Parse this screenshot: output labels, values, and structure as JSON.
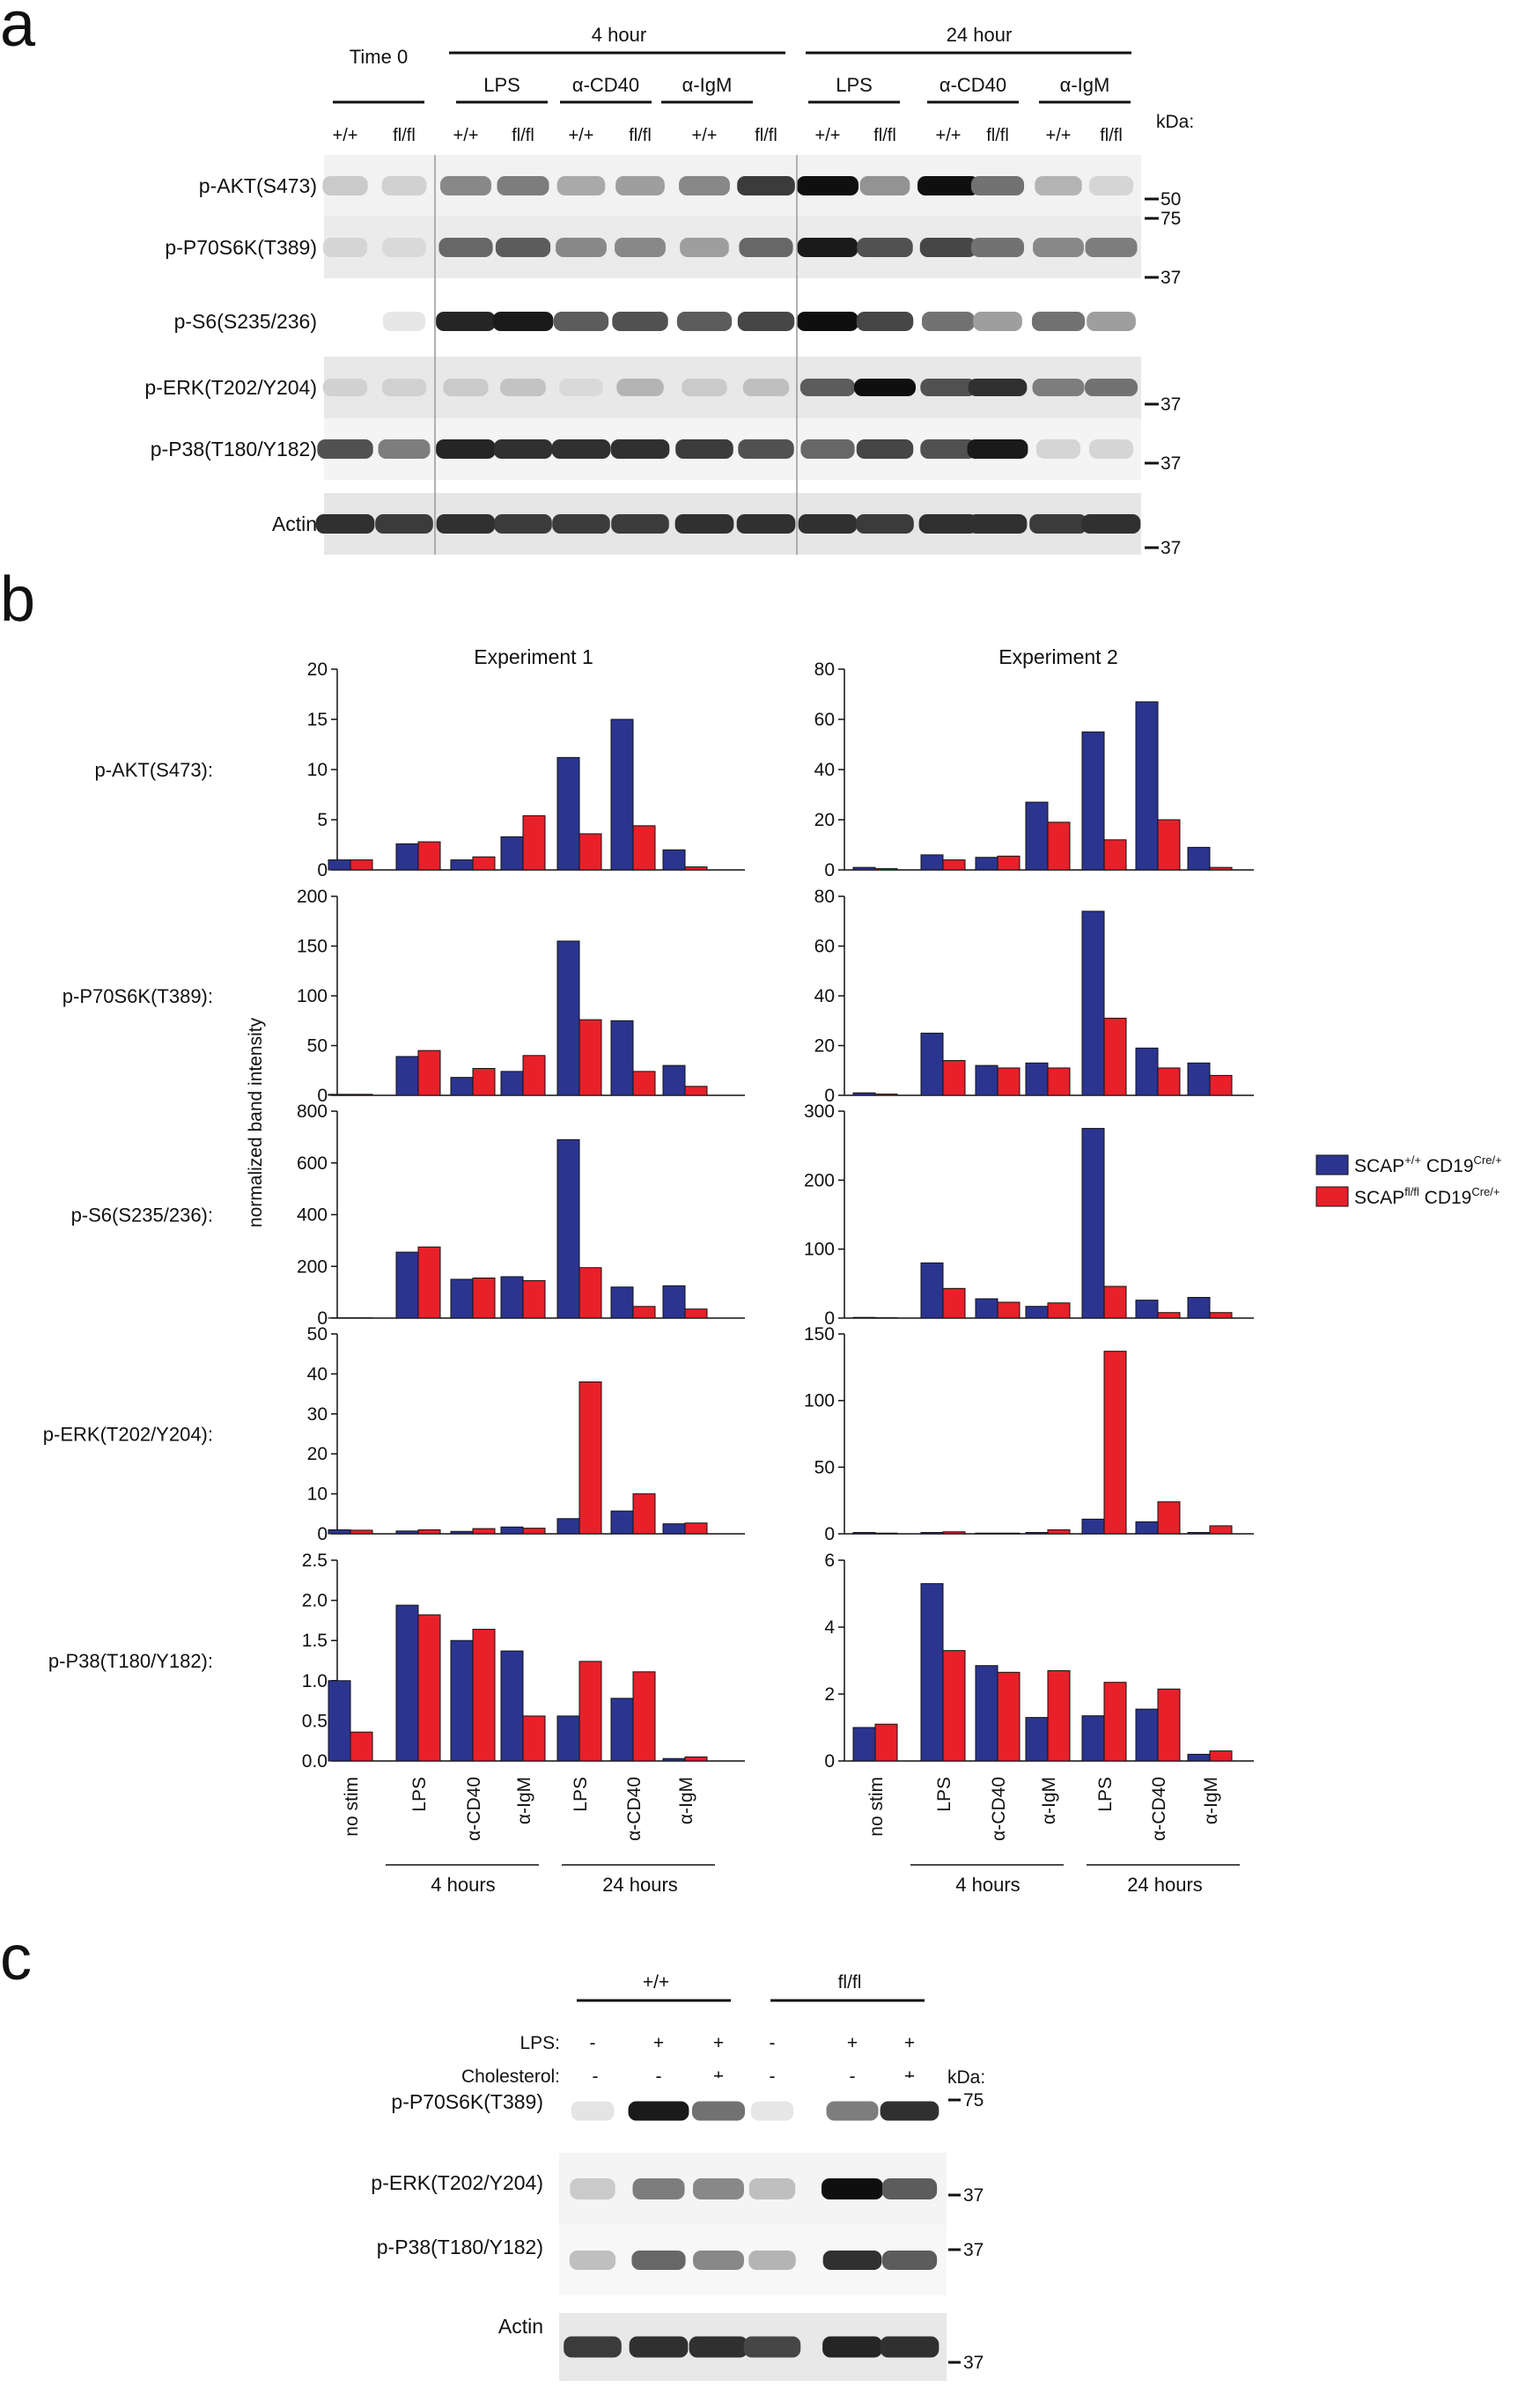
{
  "panel_a": {
    "letter": "a",
    "time0": "Time 0",
    "group_4h": "4 hour",
    "group_24h": "24 hour",
    "treatments": [
      "LPS",
      "α-CD40",
      "α-IgM",
      "LPS",
      "α-CD40",
      "α-IgM"
    ],
    "genotypes": [
      "+/+",
      "fl/fl",
      "+/+",
      "fl/fl",
      "+/+",
      "fl/fl",
      "+/+",
      "fl/fl",
      "+/+",
      "fl/fl",
      "+/+",
      "fl/fl",
      "+/+",
      "fl/fl"
    ],
    "kda_label": "kDa:",
    "blots": [
      {
        "label": "p-AKT(S473)",
        "markers": [
          "50",
          "75"
        ]
      },
      {
        "label": "p-P70S6K(T389)",
        "markers": [
          "37"
        ]
      },
      {
        "label": "p-S6(S235/236)",
        "markers": []
      },
      {
        "label": "p-ERK(T202/Y204)",
        "markers": [
          "37"
        ]
      },
      {
        "label": "p-P38(T180/Y182)",
        "markers": [
          "37"
        ]
      },
      {
        "label": "Actin",
        "markers": [
          "37"
        ]
      }
    ],
    "band_intensities": [
      [
        0.15,
        0.12,
        0.45,
        0.5,
        0.3,
        0.35,
        0.45,
        0.8,
        1.0,
        0.4,
        1.0,
        0.55,
        0.25,
        0.1
      ],
      [
        0.1,
        0.08,
        0.6,
        0.65,
        0.45,
        0.45,
        0.35,
        0.6,
        0.95,
        0.7,
        0.75,
        0.55,
        0.45,
        0.5
      ],
      [
        0.0,
        0.02,
        0.9,
        0.95,
        0.65,
        0.7,
        0.65,
        0.75,
        1.0,
        0.75,
        0.55,
        0.35,
        0.55,
        0.35
      ],
      [
        0.12,
        0.12,
        0.15,
        0.18,
        0.08,
        0.25,
        0.15,
        0.2,
        0.65,
        1.0,
        0.7,
        0.85,
        0.5,
        0.55
      ],
      [
        0.7,
        0.5,
        0.9,
        0.85,
        0.85,
        0.85,
        0.8,
        0.7,
        0.6,
        0.75,
        0.7,
        0.95,
        0.1,
        0.1
      ],
      [
        0.85,
        0.8,
        0.85,
        0.8,
        0.8,
        0.8,
        0.85,
        0.85,
        0.85,
        0.8,
        0.85,
        0.85,
        0.8,
        0.85
      ]
    ]
  },
  "panel_b": {
    "letter": "b",
    "ylabel": "normalized band intensity",
    "row_labels": [
      "p-AKT(S473):",
      "p-P70S6K(T389):",
      "p-S6(S235/236):",
      "p-ERK(T202/Y204):",
      "p-P38(T180/Y182):"
    ],
    "x_categories": [
      "no stim",
      "LPS",
      "α-CD40",
      "α-IgM",
      "LPS",
      "α-CD40",
      "α-IgM"
    ],
    "x_groups": [
      "4 hours",
      "24 hours"
    ],
    "legend": {
      "wt_main": "SCAP",
      "wt_sup": "+/+",
      "wt_rest": " CD19",
      "wt_sup2": "Cre/+",
      "ko_main": "SCAP",
      "ko_sup": "fl/fl",
      "ko_rest": " CD19",
      "ko_sup2": "Cre/+"
    },
    "colors": {
      "wt": "#2b3590",
      "ko": "#e8202a"
    }
  },
  "chart_data": [
    {
      "type": "bar",
      "title": "Experiment 1",
      "row": "p-AKT(S473):",
      "categories": [
        "no stim",
        "LPS",
        "α-CD40",
        "α-IgM",
        "LPS",
        "α-CD40",
        "α-IgM"
      ],
      "series": [
        {
          "name": "SCAP+/+ CD19Cre/+",
          "values": [
            1.0,
            2.6,
            1.0,
            3.3,
            11.2,
            15.0,
            2.0
          ]
        },
        {
          "name": "SCAPfl/fl CD19Cre/+",
          "values": [
            1.0,
            2.8,
            1.3,
            5.4,
            3.6,
            4.4,
            0.3
          ]
        }
      ],
      "ylim": [
        0,
        20
      ],
      "yticks": [
        0,
        5,
        10,
        15,
        20
      ]
    },
    {
      "type": "bar",
      "title": "Experiment 2",
      "row": "p-AKT(S473):",
      "categories": [
        "no stim",
        "LPS",
        "α-CD40",
        "α-IgM",
        "LPS",
        "α-CD40",
        "α-IgM"
      ],
      "series": [
        {
          "name": "SCAP+/+ CD19Cre/+",
          "values": [
            1,
            6,
            5,
            27,
            55,
            67,
            9
          ]
        },
        {
          "name": "SCAPfl/fl CD19Cre/+",
          "values": [
            0.5,
            4,
            5.5,
            19,
            12,
            20,
            1
          ]
        }
      ],
      "ylim": [
        0,
        80
      ],
      "yticks": [
        0,
        20,
        40,
        60,
        80
      ]
    },
    {
      "type": "bar",
      "title": "",
      "row": "p-P70S6K(T389):",
      "categories": [
        "no stim",
        "LPS",
        "α-CD40",
        "α-IgM",
        "LPS",
        "α-CD40",
        "α-IgM"
      ],
      "series": [
        {
          "name": "SCAP+/+ CD19Cre/+",
          "values": [
            1,
            39,
            18,
            24,
            155,
            75,
            30
          ]
        },
        {
          "name": "SCAPfl/fl CD19Cre/+",
          "values": [
            1,
            45,
            27,
            40,
            76,
            24,
            9
          ]
        }
      ],
      "ylim": [
        0,
        200
      ],
      "yticks": [
        0,
        50,
        100,
        150,
        200
      ]
    },
    {
      "type": "bar",
      "title": "",
      "row": "p-P70S6K(T389):",
      "categories": [
        "no stim",
        "LPS",
        "α-CD40",
        "α-IgM",
        "LPS",
        "α-CD40",
        "α-IgM"
      ],
      "series": [
        {
          "name": "SCAP+/+ CD19Cre/+",
          "values": [
            1,
            25,
            12,
            13,
            74,
            19,
            13
          ]
        },
        {
          "name": "SCAPfl/fl CD19Cre/+",
          "values": [
            0.5,
            14,
            11,
            11,
            31,
            11,
            8
          ]
        }
      ],
      "ylim": [
        0,
        80
      ],
      "yticks": [
        0,
        20,
        40,
        60,
        80
      ]
    },
    {
      "type": "bar",
      "title": "",
      "row": "p-S6(S235/236):",
      "categories": [
        "no stim",
        "LPS",
        "α-CD40",
        "α-IgM",
        "LPS",
        "α-CD40",
        "α-IgM"
      ],
      "series": [
        {
          "name": "SCAP+/+ CD19Cre/+",
          "values": [
            1,
            255,
            150,
            160,
            690,
            120,
            125
          ]
        },
        {
          "name": "SCAPfl/fl CD19Cre/+",
          "values": [
            1,
            275,
            155,
            145,
            195,
            45,
            35
          ]
        }
      ],
      "ylim": [
        0,
        800
      ],
      "yticks": [
        0,
        200,
        400,
        600,
        800
      ]
    },
    {
      "type": "bar",
      "title": "",
      "row": "p-S6(S235/236):",
      "categories": [
        "no stim",
        "LPS",
        "α-CD40",
        "α-IgM",
        "LPS",
        "α-CD40",
        "α-IgM"
      ],
      "series": [
        {
          "name": "SCAP+/+ CD19Cre/+",
          "values": [
            1,
            80,
            28,
            17,
            275,
            26,
            30
          ]
        },
        {
          "name": "SCAPfl/fl CD19Cre/+",
          "values": [
            0.5,
            43,
            23,
            22,
            46,
            8,
            8
          ]
        }
      ],
      "ylim": [
        0,
        300
      ],
      "yticks": [
        0,
        100,
        200,
        300
      ]
    },
    {
      "type": "bar",
      "title": "",
      "row": "p-ERK(T202/Y204):",
      "categories": [
        "no stim",
        "LPS",
        "α-CD40",
        "α-IgM",
        "LPS",
        "α-CD40",
        "α-IgM"
      ],
      "series": [
        {
          "name": "SCAP+/+ CD19Cre/+",
          "values": [
            1,
            0.7,
            0.6,
            1.7,
            3.8,
            5.7,
            2.5
          ]
        },
        {
          "name": "SCAPfl/fl CD19Cre/+",
          "values": [
            0.9,
            1.0,
            1.3,
            1.4,
            38,
            10,
            2.7
          ]
        }
      ],
      "ylim": [
        0,
        50
      ],
      "yticks": [
        0,
        10,
        20,
        30,
        40,
        50
      ]
    },
    {
      "type": "bar",
      "title": "",
      "row": "p-ERK(T202/Y204):",
      "categories": [
        "no stim",
        "LPS",
        "α-CD40",
        "α-IgM",
        "LPS",
        "α-CD40",
        "α-IgM"
      ],
      "series": [
        {
          "name": "SCAP+/+ CD19Cre/+",
          "values": [
            1,
            1,
            0.5,
            1,
            11,
            9,
            1
          ]
        },
        {
          "name": "SCAPfl/fl CD19Cre/+",
          "values": [
            0.5,
            1.5,
            0.5,
            3,
            137,
            24,
            6
          ]
        }
      ],
      "ylim": [
        0,
        150
      ],
      "yticks": [
        0,
        50,
        100,
        150
      ]
    },
    {
      "type": "bar",
      "title": "",
      "row": "p-P38(T180/Y182):",
      "categories": [
        "no stim",
        "LPS",
        "α-CD40",
        "α-IgM",
        "LPS",
        "α-CD40",
        "α-IgM"
      ],
      "series": [
        {
          "name": "SCAP+/+ CD19Cre/+",
          "values": [
            1.0,
            1.94,
            1.5,
            1.37,
            0.56,
            0.78,
            0.03
          ]
        },
        {
          "name": "SCAPfl/fl CD19Cre/+",
          "values": [
            0.36,
            1.82,
            1.64,
            0.56,
            1.24,
            1.11,
            0.05
          ]
        }
      ],
      "ylim": [
        0,
        2.5
      ],
      "yticks": [
        "0.0",
        "0.5",
        "1.0",
        "1.5",
        "2.0",
        "2.5"
      ]
    },
    {
      "type": "bar",
      "title": "",
      "row": "p-P38(T180/Y182):",
      "categories": [
        "no stim",
        "LPS",
        "α-CD40",
        "α-IgM",
        "LPS",
        "α-CD40",
        "α-IgM"
      ],
      "series": [
        {
          "name": "SCAP+/+ CD19Cre/+",
          "values": [
            1.0,
            5.3,
            2.85,
            1.3,
            1.35,
            1.55,
            0.2
          ]
        },
        {
          "name": "SCAPfl/fl CD19Cre/+",
          "values": [
            1.1,
            3.3,
            2.65,
            2.7,
            2.35,
            2.15,
            0.3
          ]
        }
      ],
      "ylim": [
        0,
        6
      ],
      "yticks": [
        0,
        2,
        4,
        6
      ]
    }
  ],
  "panel_c": {
    "letter": "c",
    "groups": [
      "+/+",
      "fl/fl"
    ],
    "lps_label": "LPS:",
    "chol_label": "Cholesterol:",
    "lps": [
      "-",
      "+",
      "+",
      "-",
      "+",
      "+"
    ],
    "chol": [
      "-",
      "-",
      "+",
      "-",
      "-",
      "+"
    ],
    "kda_label": "kDa:",
    "blots": [
      {
        "label": "p-P70S6K(T389)",
        "marker": "75"
      },
      {
        "label": "p-ERK(T202/Y204)",
        "marker": "37"
      },
      {
        "label": "p-P38(T180/Y182)",
        "marker": "37"
      },
      {
        "label": "Actin",
        "marker": "37"
      }
    ],
    "band_intensities": [
      [
        0.03,
        0.95,
        0.55,
        0.02,
        0.5,
        0.85
      ],
      [
        0.15,
        0.5,
        0.45,
        0.2,
        1.0,
        0.65
      ],
      [
        0.2,
        0.6,
        0.45,
        0.25,
        0.85,
        0.65
      ],
      [
        0.8,
        0.85,
        0.85,
        0.75,
        0.9,
        0.85
      ]
    ]
  }
}
